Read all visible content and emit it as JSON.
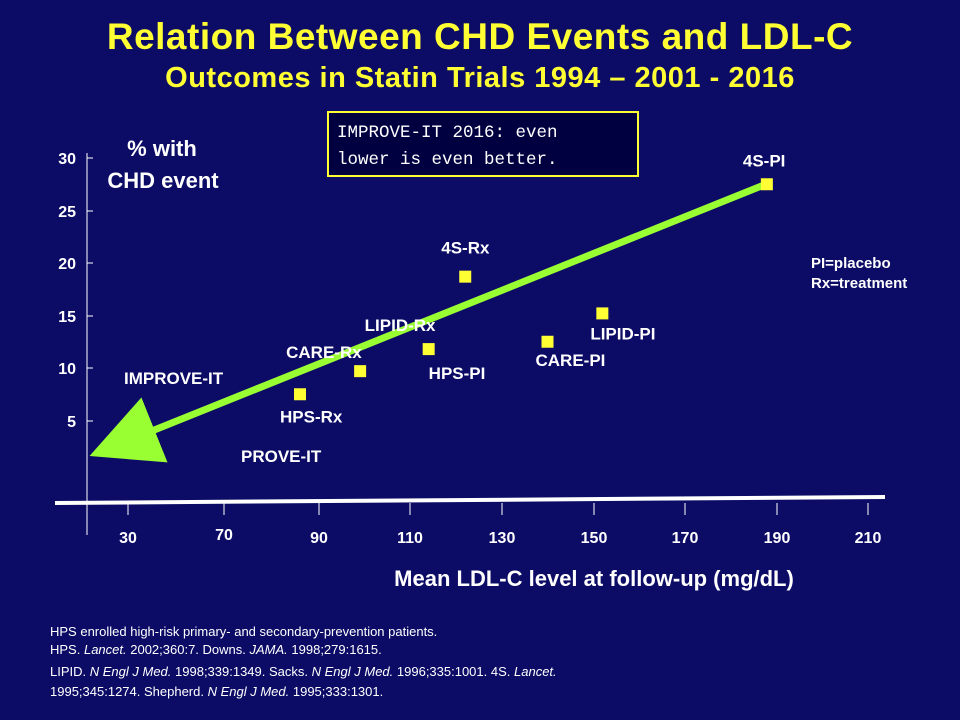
{
  "title": "Relation Between CHD Events and LDL-C",
  "subtitle": "Outcomes in Statin Trials 1994 – 2001 - 2016",
  "chart_data": {
    "type": "scatter",
    "title": "Relation Between CHD Events and LDL-C Outcomes in Statin Trials 1994 – 2001 - 2016",
    "xlabel": "Mean LDL-C level at follow-up (mg/dL)",
    "ylabel_line1": "% with",
    "ylabel_line2": "CHD event",
    "x_ticks": [
      "30",
      "70",
      "90",
      "110",
      "130",
      "150",
      "170",
      "190",
      "210"
    ],
    "y_ticks": [
      "30",
      "25",
      "20",
      "15",
      "10",
      "5"
    ],
    "points": [
      {
        "label": "4S-PI",
        "x": 188,
        "y": 27.5
      },
      {
        "label": "4S-Rx",
        "x": 122,
        "y": 18.7
      },
      {
        "label": "LIPID-PI",
        "x": 152,
        "y": 15.2
      },
      {
        "label": "CARE-PI",
        "x": 140,
        "y": 12.5
      },
      {
        "label": "LIPID-Rx",
        "x": 114,
        "y": 11.8
      },
      {
        "label": "HPS-PI",
        "x": 114,
        "y": 11.8
      },
      {
        "label": "CARE-Rx",
        "x": 99,
        "y": 9.7
      },
      {
        "label": "HPS-Rx",
        "x": 86,
        "y": 7.5
      }
    ],
    "unplotted_labels": [
      "IMPROVE-IT",
      "PROVE-IT"
    ],
    "trend_arrow": {
      "from": {
        "x": 188,
        "y": 27.5
      },
      "to": {
        "x": 28,
        "y": 0.5
      }
    },
    "annotation_line1": "IMPROVE-IT 2016: even",
    "annotation_line2": "lower is even better.",
    "legend_line1": "PI=placebo",
    "legend_line2": "Rx=treatment",
    "colors": {
      "marker": "#ffff33",
      "arrow": "#99ff33",
      "axis": "#ffffff",
      "annotation_border": "#ffff33"
    }
  },
  "references": {
    "line1": "HPS enrolled  high-risk primary- and secondary-prevention  patients.",
    "line2_a": "HPS. ",
    "line2_b": "Lancet.",
    "line2_c": " 2002;360:7.  Downs. ",
    "line2_d": "JAMA.",
    "line2_e": " 1998;279:1615.",
    "line3_a": "LIPID. ",
    "line3_b": "N Engl  J Med.",
    "line3_c": " 1998;339:1349.  Sacks. ",
    "line3_d": "N Engl  J Med.",
    "line3_e": " 1996;335:1001.  4S. ",
    "line3_f": "Lancet.",
    "line4_a": "1995;345:1274.  Shepherd. ",
    "line4_b": "N Engl  J Med.",
    "line4_c": " 1995;333:1301."
  }
}
